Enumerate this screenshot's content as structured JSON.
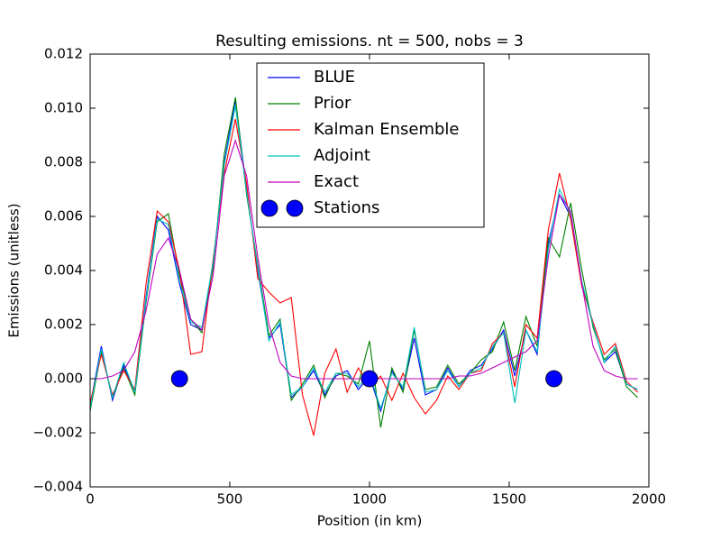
{
  "chart_data": {
    "type": "line",
    "title": "Resulting emissions. nt = 500, nobs = 3",
    "xlabel": "Position (in km)",
    "ylabel": "Emissions (unitless)",
    "x": [
      0,
      40,
      80,
      120,
      160,
      200,
      240,
      280,
      320,
      360,
      400,
      440,
      480,
      520,
      560,
      600,
      640,
      680,
      720,
      760,
      800,
      840,
      880,
      920,
      960,
      1000,
      1040,
      1080,
      1120,
      1160,
      1200,
      1240,
      1280,
      1320,
      1360,
      1400,
      1440,
      1480,
      1520,
      1560,
      1600,
      1640,
      1680,
      1720,
      1760,
      1800,
      1840,
      1880,
      1920,
      1960
    ],
    "series": [
      {
        "name": "BLUE",
        "color": "#0000ff",
        "values": [
          -0.001,
          0.0012,
          -0.0008,
          0.0005,
          -0.0005,
          0.003,
          0.006,
          0.0055,
          0.0035,
          0.002,
          0.0018,
          0.0042,
          0.008,
          0.0103,
          0.007,
          0.004,
          0.0015,
          0.002,
          -0.0007,
          -0.0003,
          0.0003,
          -0.0006,
          0.0001,
          0.0003,
          -0.0004,
          0.0001,
          -0.0012,
          0.0003,
          -0.0004,
          0.0015,
          -0.0006,
          -0.0004,
          0.0004,
          -0.0003,
          0.0003,
          0.0005,
          0.0011,
          0.0018,
          0.0001,
          0.0018,
          0.0009,
          0.005,
          0.0068,
          0.006,
          0.0035,
          0.002,
          0.0006,
          0.001,
          -0.0002,
          -0.0004
        ]
      },
      {
        "name": "Prior",
        "color": "#008000",
        "values": [
          -0.0012,
          0.001,
          -0.0007,
          0.0004,
          -0.0006,
          0.0028,
          0.0058,
          0.0061,
          0.0038,
          0.0022,
          0.0017,
          0.0041,
          0.0083,
          0.0104,
          0.0068,
          0.0042,
          0.0016,
          0.0022,
          -0.0008,
          -0.0002,
          0.0005,
          -0.0007,
          0.0002,
          0.0001,
          -0.0002,
          0.0014,
          -0.0018,
          0.0004,
          -0.0005,
          0.0018,
          -0.0004,
          -0.0003,
          0.0005,
          -0.0002,
          0.0002,
          0.0007,
          0.001,
          0.0021,
          0.0003,
          0.0023,
          0.0012,
          0.0052,
          0.0045,
          0.0065,
          0.004,
          0.0019,
          0.0007,
          0.0011,
          -0.0003,
          -0.0007
        ]
      },
      {
        "name": "Kalman Ensemble",
        "color": "#ff0000",
        "values": [
          -0.0009,
          0.0009,
          -0.0006,
          0.0003,
          -0.0004,
          0.0035,
          0.0062,
          0.0058,
          0.004,
          0.0009,
          0.001,
          0.0044,
          0.0076,
          0.0096,
          0.0072,
          0.0037,
          0.0032,
          0.0028,
          0.003,
          -0.0006,
          -0.0021,
          0.0002,
          0.0011,
          -0.0005,
          0.0004,
          -0.0003,
          0.0001,
          -0.0008,
          0.0002,
          -0.0007,
          -0.0013,
          -0.0008,
          0.0001,
          -0.0004,
          0.0002,
          0.0003,
          0.0013,
          0.0017,
          -0.0003,
          0.002,
          0.0015,
          0.0055,
          0.0076,
          0.0059,
          0.0034,
          0.0021,
          0.0009,
          0.0013,
          -0.0001,
          -0.0005
        ]
      },
      {
        "name": "Adjoint",
        "color": "#00bfbf",
        "values": [
          -0.0011,
          0.0011,
          -0.0007,
          0.0006,
          -0.0005,
          0.0029,
          0.0059,
          0.0057,
          0.0036,
          0.0021,
          0.0019,
          0.0043,
          0.0079,
          0.0101,
          0.0069,
          0.0041,
          0.0014,
          0.0021,
          -0.0006,
          -0.0003,
          0.0004,
          -0.0005,
          0.0002,
          0.0002,
          -0.0003,
          0.0002,
          -0.0011,
          0.0002,
          -0.0003,
          0.0019,
          -0.0005,
          -0.0004,
          0.0003,
          -0.0003,
          0.0002,
          0.0004,
          0.0012,
          0.0017,
          -0.0009,
          0.0018,
          0.001,
          0.0048,
          0.007,
          0.0061,
          0.0036,
          0.002,
          0.0006,
          0.0012,
          -0.0002,
          -0.0004
        ]
      },
      {
        "name": "Exact",
        "color": "#bf00bf",
        "values": [
          0,
          0,
          0.0001,
          0.0003,
          0.001,
          0.0025,
          0.0046,
          0.0052,
          0.004,
          0.0022,
          0.0018,
          0.0038,
          0.0075,
          0.0088,
          0.0075,
          0.0045,
          0.002,
          0.0006,
          0.0001,
          0,
          0,
          0,
          0,
          0,
          0,
          0,
          0,
          0,
          0,
          0,
          0,
          0,
          0,
          0.0001,
          0.0001,
          0.0002,
          0.0004,
          0.0006,
          0.0008,
          0.001,
          0.0014,
          0.0045,
          0.0068,
          0.0062,
          0.0035,
          0.0012,
          0.0003,
          0.0001,
          0,
          0
        ]
      },
      {
        "name": "Stations",
        "color": "#0000ff",
        "marker": "circle",
        "x": [
          320,
          1000,
          1660
        ],
        "values": [
          0,
          0,
          0
        ]
      }
    ],
    "xlim": [
      0,
      2000
    ],
    "xticks": [
      0,
      500,
      1000,
      1500,
      2000
    ],
    "ylim": [
      -0.004,
      0.012
    ],
    "yticks": [
      {
        "value": -0.004,
        "label": "−0.004"
      },
      {
        "value": -0.002,
        "label": "−0.002"
      },
      {
        "value": 0,
        "label": "0.000"
      },
      {
        "value": 0.002,
        "label": "0.002"
      },
      {
        "value": 0.004,
        "label": "0.004"
      },
      {
        "value": 0.006,
        "label": "0.006"
      },
      {
        "value": 0.008,
        "label": "0.008"
      },
      {
        "value": 0.01,
        "label": "0.010"
      },
      {
        "value": 0.012,
        "label": "0.012"
      }
    ],
    "legend": "upper center",
    "grid": false
  }
}
